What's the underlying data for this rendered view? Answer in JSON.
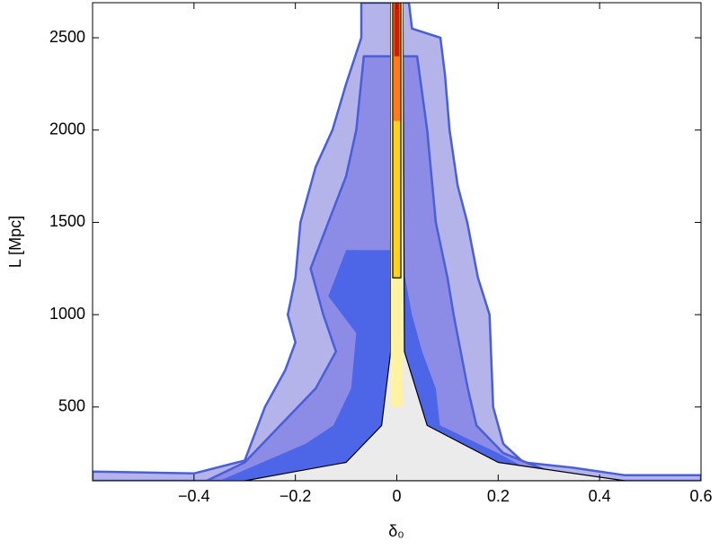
{
  "chart_data": {
    "type": "contour",
    "xlabel": "δ₀",
    "ylabel": "L [Mpc]",
    "xlim": [
      -0.6,
      0.6
    ],
    "ylim": [
      100,
      2690
    ],
    "xticks": [
      {
        "value": -0.4,
        "label": "−0.4"
      },
      {
        "value": -0.2,
        "label": "−0.2"
      },
      0,
      0.2,
      0.4,
      0.6
    ],
    "yticks": [
      500,
      1000,
      1500,
      2000,
      2500
    ],
    "contours": [
      {
        "color": "#b4b4ea",
        "stroke": "#4a5ed8",
        "x": [
          -0.6,
          -0.6,
          -0.4,
          -0.3,
          -0.26,
          -0.22,
          -0.2,
          -0.215,
          -0.2,
          -0.19,
          -0.16,
          -0.127,
          -0.1,
          -0.07,
          -0.07,
          0.024,
          0.03,
          0.086,
          0.095,
          0.104,
          0.12,
          0.139,
          0.16,
          0.183,
          0.19,
          0.21,
          0.25,
          0.35,
          0.45,
          0.6,
          0.6
        ],
        "y": [
          100,
          150,
          140,
          210,
          500,
          700,
          850,
          1000,
          1200,
          1500,
          1800,
          2000,
          2250,
          2500,
          2690,
          2690,
          2550,
          2500,
          2300,
          2000,
          1700,
          1500,
          1200,
          1000,
          500,
          300,
          200,
          170,
          130,
          130,
          100
        ]
      },
      {
        "color": "#8c8ce6",
        "stroke": "#4a5ed8",
        "x": [
          -0.375,
          -0.3,
          -0.23,
          -0.16,
          -0.12,
          -0.145,
          -0.17,
          -0.135,
          -0.1,
          -0.08,
          -0.065,
          0.04,
          0.06,
          0.077,
          0.1,
          0.112,
          0.14,
          0.157,
          0.21,
          0.3,
          0.4
        ],
        "y": [
          100,
          200,
          400,
          600,
          800,
          1000,
          1250,
          1500,
          1750,
          2000,
          2400,
          2400,
          2000,
          1500,
          1200,
          1000,
          600,
          400,
          250,
          150,
          100
        ]
      },
      {
        "color": "#4d66e8",
        "stroke": "none",
        "x": [
          -0.35,
          -0.18,
          -0.125,
          -0.09,
          -0.08,
          -0.135,
          -0.1,
          0.006,
          0.03,
          0.05,
          0.077,
          0.085,
          0.2,
          0.3
        ],
        "y": [
          100,
          300,
          400,
          600,
          900,
          1100,
          1350,
          1350,
          1000,
          800,
          600,
          400,
          250,
          100
        ]
      },
      {
        "color": "#ebebeb",
        "stroke": "#000",
        "x": [
          -0.3,
          -0.2,
          -0.1,
          -0.03,
          -0.012,
          -0.012,
          0.012,
          0.015,
          0.06,
          0.2,
          0.45
        ],
        "y": [
          100,
          150,
          200,
          400,
          800,
          2690,
          2690,
          800,
          400,
          200,
          100
        ]
      },
      {
        "color": "#fff2a0",
        "stroke": "none",
        "x": [
          -0.012,
          -0.012,
          0.012,
          0.012
        ],
        "y": [
          500,
          2690,
          2690,
          500
        ]
      },
      {
        "color": "#ffd21f",
        "stroke": "#000",
        "x": [
          -0.008,
          -0.008,
          0.008,
          0.008
        ],
        "y": [
          1200,
          2690,
          2690,
          1200
        ]
      },
      {
        "color": "#ff7a1a",
        "stroke": "none",
        "x": [
          -0.007,
          -0.007,
          0.007,
          0.007
        ],
        "y": [
          2050,
          2690,
          2690,
          2050
        ]
      },
      {
        "color": "#c81e0a",
        "stroke": "none",
        "x": [
          -0.005,
          -0.005,
          0.005,
          0.005
        ],
        "y": [
          2400,
          2690,
          2690,
          2400
        ]
      }
    ]
  }
}
